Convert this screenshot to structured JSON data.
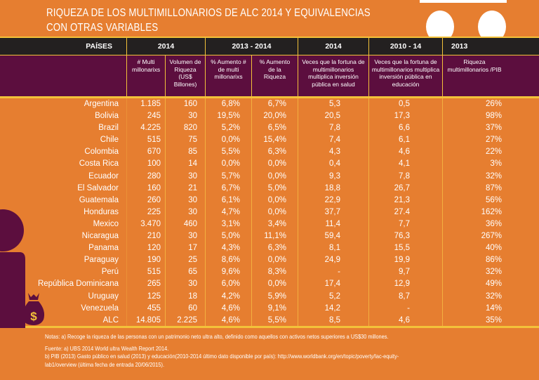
{
  "title_line1": "RIQUEZA DE LOS MULTIMILLONARIOS DE ALC 2014 Y EQUIVALENCIAS",
  "title_line2": "CON OTRAS VARIABLES",
  "header": {
    "paises": "PAÍSES",
    "g1": "2014",
    "g2": "2013 - 2014",
    "g3": "2014",
    "g4": "2010 - 14",
    "g5": "2013"
  },
  "subheader": [
    "# Multi millonarixs",
    "Volumen de Riqueza (US$ Billones)",
    "% Aumento # de multi millonarixs",
    "% Aumento de la Riqueza",
    "Veces que la fortuna de multimillonarios multiplica inversión pública en salud",
    "Veces que la fortuna de multimillonarios multiplica inversión pública en educación",
    "Riqueza multimillonarios /PIB"
  ],
  "rows": [
    [
      "Argentina",
      "1.185",
      "160",
      "6,8%",
      "6,7%",
      "5,3",
      "0,5",
      "26%"
    ],
    [
      "Bolivia",
      "245",
      "30",
      "19,5%",
      "20,0%",
      "20,5",
      "17,3",
      "98%"
    ],
    [
      "Brazil",
      "4.225",
      "820",
      "5,2%",
      "6,5%",
      "7,8",
      "6,6",
      "37%"
    ],
    [
      "Chile",
      "515",
      "75",
      "0,0%",
      "15,4%",
      "7,4",
      "6,1",
      "27%"
    ],
    [
      "Colombia",
      "670",
      "85",
      "5,5%",
      "6,3%",
      "4,3",
      "4,6",
      "22%"
    ],
    [
      "Costa Rica",
      "100",
      "14",
      "0,0%",
      "0,0%",
      "0,4",
      "4,1",
      "3%"
    ],
    [
      "Ecuador",
      "280",
      "30",
      "5,7%",
      "0,0%",
      "9,3",
      "7,8",
      "32%"
    ],
    [
      "El Salvador",
      "160",
      "21",
      "6,7%",
      "5,0%",
      "18,8",
      "26,7",
      "87%"
    ],
    [
      "Guatemala",
      "260",
      "30",
      "6,1%",
      "0,0%",
      "22,9",
      "21,3",
      "56%"
    ],
    [
      "Honduras",
      "225",
      "30",
      "4,7%",
      "0,0%",
      "37,7",
      "27.4",
      "162%"
    ],
    [
      "Mexico",
      "3.470",
      "460",
      "3,1%",
      "3,4%",
      "11,4",
      "7,7",
      "36%"
    ],
    [
      "Nicaragua",
      "210",
      "30",
      "5,0%",
      "11,1%",
      "59,4",
      "76,3",
      "267%"
    ],
    [
      "Panama",
      "120",
      "17",
      "4,3%",
      "6,3%",
      "8,1",
      "15,5",
      "40%"
    ],
    [
      "Paraguay",
      "190",
      "25",
      "8,6%",
      "0,0%",
      "24,9",
      "19,9",
      "86%"
    ],
    [
      "Perú",
      "515",
      "65",
      "9,6%",
      "8,3%",
      "-",
      "9,7",
      "32%"
    ],
    [
      "República Dominicana",
      "265",
      "30",
      "6,0%",
      "0,0%",
      "17,4",
      "12,9",
      "49%"
    ],
    [
      "Uruguay",
      "125",
      "18",
      "4,2%",
      "5,9%",
      "5,2",
      "8,7",
      "32%"
    ],
    [
      "Venezuela",
      "455",
      "60",
      "4,6%",
      "9,1%",
      "14,2",
      "-",
      "14%"
    ],
    [
      "ALC",
      "14.805",
      "2.225",
      "4,6%",
      "5,5%",
      "8,5",
      "4,6",
      "35%"
    ]
  ],
  "notes": {
    "nota": "Notas:  a) Recoge la riqueza de las personas con un patrimonio neto ultra alto, definido como aquellos con activos netos superiores a US$30 millones.",
    "fuente_a": "Fuente:  a) UBS 2014 World ultra Wealth Report 2014.",
    "fuente_b1": "b) PIB (2013) Gasto público en salud (2013) y educación(2010-2014 último dato disponible por país): http://www.worldbank.org/en/topic/poverty/lac-equity-",
    "fuente_b2": "lab1/overview (última fecha de entrada 20/06/2015)."
  },
  "icons": [
    "person-icon",
    "money-bag-icon"
  ],
  "colors": {
    "background": "#e67e30",
    "header": "#232020",
    "subheader": "#5c0e3e",
    "accent": "#f3c23a"
  }
}
